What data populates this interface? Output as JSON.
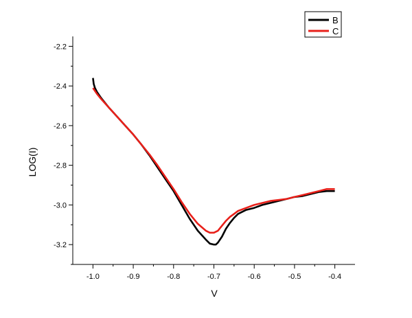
{
  "chart_data": {
    "type": "line",
    "title": "",
    "xlabel": "V",
    "ylabel": "LOG(I)",
    "xlim": [
      -1.05,
      -0.35
    ],
    "ylim": [
      -3.3,
      -2.15
    ],
    "x_ticks": [
      -1.0,
      -0.9,
      -0.8,
      -0.7,
      -0.6,
      -0.5,
      -0.4
    ],
    "x_tick_labels": [
      "-1.0",
      "-0.9",
      "-0.8",
      "-0.7",
      "-0.6",
      "-0.5",
      "-0.4"
    ],
    "y_ticks": [
      -2.2,
      -2.4,
      -2.6,
      -2.8,
      -3.0,
      -3.2
    ],
    "y_tick_labels": [
      "-2.2",
      "-2.4",
      "-2.6",
      "-2.8",
      "-3.0",
      "-3.2"
    ],
    "grid": false,
    "legend_position": "top-right",
    "series": [
      {
        "name": "B",
        "color": "#000000",
        "x": [
          -1.0,
          -0.998,
          -0.995,
          -0.99,
          -0.98,
          -0.96,
          -0.94,
          -0.92,
          -0.9,
          -0.88,
          -0.86,
          -0.84,
          -0.82,
          -0.8,
          -0.78,
          -0.76,
          -0.74,
          -0.72,
          -0.71,
          -0.7,
          -0.695,
          -0.69,
          -0.68,
          -0.67,
          -0.66,
          -0.65,
          -0.64,
          -0.62,
          -0.6,
          -0.58,
          -0.56,
          -0.54,
          -0.52,
          -0.5,
          -0.48,
          -0.46,
          -0.44,
          -0.42,
          -0.4
        ],
        "values": [
          -2.36,
          -2.39,
          -2.41,
          -2.43,
          -2.46,
          -2.51,
          -2.555,
          -2.6,
          -2.645,
          -2.695,
          -2.75,
          -2.81,
          -2.87,
          -2.93,
          -3.0,
          -3.07,
          -3.13,
          -3.175,
          -3.195,
          -3.2,
          -3.2,
          -3.19,
          -3.16,
          -3.12,
          -3.09,
          -3.065,
          -3.045,
          -3.025,
          -3.015,
          -3.0,
          -2.99,
          -2.98,
          -2.97,
          -2.96,
          -2.955,
          -2.945,
          -2.935,
          -2.93,
          -2.93
        ]
      },
      {
        "name": "C",
        "color": "#e8201a",
        "x": [
          -1.0,
          -0.99,
          -0.98,
          -0.96,
          -0.94,
          -0.92,
          -0.9,
          -0.88,
          -0.86,
          -0.84,
          -0.82,
          -0.8,
          -0.78,
          -0.76,
          -0.74,
          -0.72,
          -0.71,
          -0.7,
          -0.69,
          -0.68,
          -0.67,
          -0.66,
          -0.65,
          -0.64,
          -0.62,
          -0.6,
          -0.58,
          -0.56,
          -0.54,
          -0.52,
          -0.5,
          -0.48,
          -0.46,
          -0.44,
          -0.42,
          -0.4
        ],
        "values": [
          -2.41,
          -2.44,
          -2.465,
          -2.51,
          -2.555,
          -2.6,
          -2.645,
          -2.695,
          -2.745,
          -2.8,
          -2.86,
          -2.92,
          -2.985,
          -3.045,
          -3.095,
          -3.13,
          -3.14,
          -3.14,
          -3.13,
          -3.105,
          -3.08,
          -3.06,
          -3.045,
          -3.03,
          -3.015,
          -3.0,
          -2.99,
          -2.98,
          -2.975,
          -2.97,
          -2.96,
          -2.95,
          -2.94,
          -2.93,
          -2.92,
          -2.92
        ]
      }
    ]
  }
}
